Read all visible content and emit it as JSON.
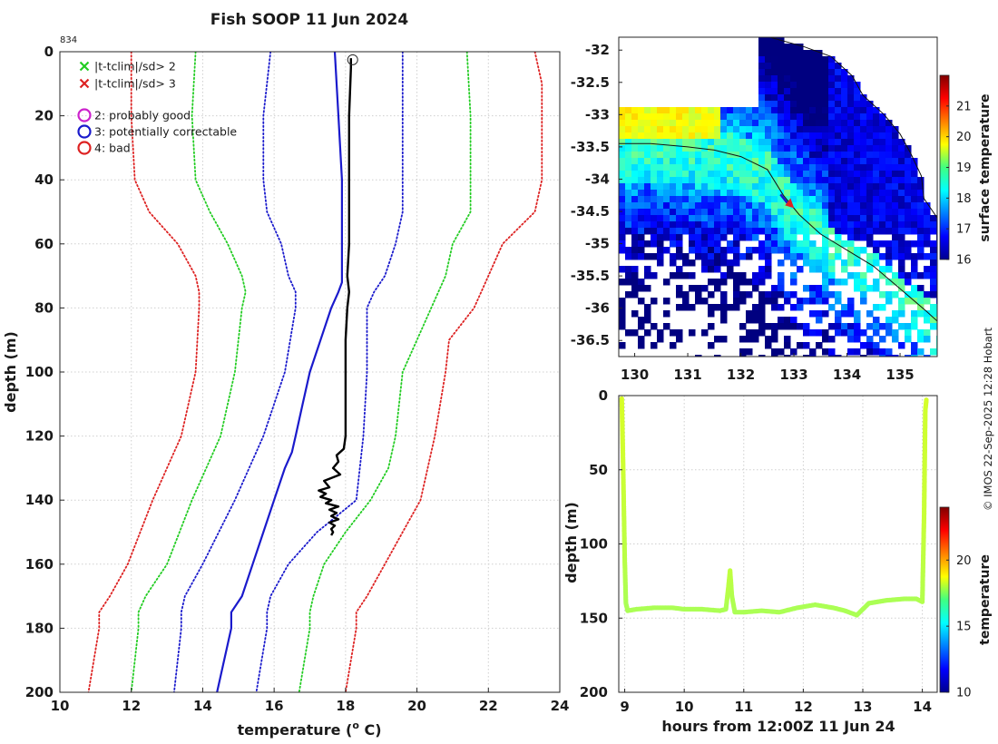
{
  "title": "Fish SOOP 11 Jun 2024",
  "profile_id": "834",
  "watermark": "© IMOS 22-Sep-2025 12:28 Hobart",
  "chart_data": [
    {
      "type": "line",
      "panel": "temperature-profile",
      "xlabel": "temperature (",
      "xlabel_sup": "o",
      "xlabel_tail": " C)",
      "ylabel": "depth (m)",
      "xlim": [
        10,
        24
      ],
      "ylim": [
        0,
        200
      ],
      "y_reversed": true,
      "xticks": [
        "10",
        "12",
        "14",
        "16",
        "18",
        "20",
        "22",
        "24"
      ],
      "yticks": [
        "0",
        "20",
        "40",
        "60",
        "80",
        "100",
        "120",
        "140",
        "160",
        "180",
        "200"
      ],
      "grid": true,
      "legend": [
        {
          "symbol": "x",
          "color": "#22cc22",
          "label": "|t-tclim|/sd> 2"
        },
        {
          "symbol": "x",
          "color": "#dd2222",
          "label": "|t-tclim|/sd> 3"
        },
        {
          "symbol": "o",
          "color": "#cc22cc",
          "label": "2: probably good"
        },
        {
          "symbol": "o",
          "color": "#1a1acc",
          "label": "3: potentially correctable"
        },
        {
          "symbol": "o",
          "color": "#dd2222",
          "label": "4: bad"
        }
      ],
      "series": [
        {
          "name": "clim-3sd-low",
          "color": "#dd2222",
          "style": "dotted",
          "depth": [
            0,
            20,
            40,
            50,
            60,
            70,
            75,
            80,
            100,
            120,
            140,
            160,
            170,
            175,
            180,
            200
          ],
          "temp": [
            12.0,
            12.0,
            12.1,
            12.5,
            13.3,
            13.8,
            13.9,
            13.9,
            13.8,
            13.4,
            12.6,
            11.9,
            11.4,
            11.1,
            11.1,
            10.8
          ]
        },
        {
          "name": "clim-2sd-low",
          "color": "#22cc22",
          "style": "dotted",
          "depth": [
            0,
            20,
            40,
            50,
            60,
            70,
            75,
            80,
            100,
            120,
            140,
            160,
            170,
            175,
            180,
            200
          ],
          "temp": [
            13.8,
            13.7,
            13.8,
            14.2,
            14.7,
            15.1,
            15.2,
            15.1,
            14.9,
            14.5,
            13.7,
            13.0,
            12.4,
            12.2,
            12.2,
            12.0
          ]
        },
        {
          "name": "clim-1sd-low",
          "color": "#1a1acc",
          "style": "dotted",
          "depth": [
            0,
            20,
            40,
            50,
            60,
            70,
            75,
            80,
            100,
            120,
            140,
            160,
            170,
            175,
            180,
            200
          ],
          "temp": [
            15.9,
            15.7,
            15.7,
            15.8,
            16.2,
            16.4,
            16.6,
            16.6,
            16.3,
            15.7,
            14.9,
            14.0,
            13.5,
            13.4,
            13.4,
            13.2
          ]
        },
        {
          "name": "clim-mean",
          "color": "#1a1acc",
          "style": "solid",
          "depth": [
            0,
            20,
            40,
            50,
            60,
            65,
            70,
            72,
            75,
            80,
            90,
            100,
            110,
            120,
            125,
            130,
            140,
            150,
            160,
            170,
            175,
            180,
            200
          ],
          "temp": [
            17.7,
            17.8,
            17.9,
            17.9,
            17.9,
            17.9,
            17.9,
            17.9,
            17.8,
            17.6,
            17.3,
            17.0,
            16.8,
            16.6,
            16.5,
            16.3,
            16.0,
            15.7,
            15.4,
            15.1,
            14.8,
            14.8,
            14.4
          ]
        },
        {
          "name": "clim-1sd-high",
          "color": "#1a1acc",
          "style": "dotted",
          "depth": [
            0,
            20,
            40,
            50,
            60,
            70,
            75,
            80,
            100,
            120,
            140,
            150,
            160,
            170,
            175,
            180,
            200
          ],
          "temp": [
            19.6,
            19.6,
            19.6,
            19.6,
            19.4,
            19.1,
            18.8,
            18.6,
            18.6,
            18.5,
            18.3,
            17.2,
            16.4,
            15.9,
            15.8,
            15.8,
            15.5
          ]
        },
        {
          "name": "clim-2sd-high",
          "color": "#22cc22",
          "style": "dotted",
          "depth": [
            0,
            20,
            40,
            50,
            60,
            70,
            80,
            90,
            100,
            120,
            130,
            140,
            150,
            160,
            170,
            175,
            180,
            200
          ],
          "temp": [
            21.4,
            21.5,
            21.5,
            21.5,
            21.0,
            20.8,
            20.4,
            20.0,
            19.6,
            19.4,
            19.2,
            18.7,
            18.0,
            17.4,
            17.1,
            17.0,
            17.0,
            16.7
          ]
        },
        {
          "name": "clim-3sd-high",
          "color": "#dd2222",
          "style": "dotted",
          "depth": [
            0,
            10,
            20,
            40,
            50,
            60,
            70,
            80,
            90,
            100,
            120,
            140,
            150,
            160,
            170,
            175,
            180,
            200
          ],
          "temp": [
            23.3,
            23.5,
            23.5,
            23.5,
            23.3,
            22.4,
            22.0,
            21.6,
            20.9,
            20.8,
            20.5,
            20.1,
            19.6,
            19.1,
            18.6,
            18.3,
            18.3,
            18.0
          ]
        },
        {
          "name": "observed",
          "color": "#000000",
          "style": "solid",
          "depth": [
            2,
            5,
            20,
            40,
            60,
            70,
            75,
            80,
            90,
            100,
            110,
            120,
            124,
            126,
            128,
            130,
            132,
            134,
            136,
            137,
            138,
            139,
            140,
            141,
            142,
            143,
            144,
            145,
            146,
            147,
            148,
            149,
            150,
            151
          ],
          "temp": [
            18.15,
            18.15,
            18.1,
            18.1,
            18.1,
            18.05,
            18.1,
            18.05,
            18.0,
            18.0,
            18.0,
            18.0,
            17.95,
            17.75,
            17.8,
            17.65,
            17.85,
            17.4,
            17.55,
            17.25,
            17.45,
            17.3,
            17.6,
            17.45,
            17.8,
            17.55,
            17.75,
            17.6,
            17.8,
            17.55,
            17.7,
            17.6,
            17.65,
            17.6
          ]
        }
      ],
      "flag_marker": {
        "depth": 2.5,
        "temp": 18.2,
        "symbol": "o"
      }
    },
    {
      "type": "heatmap",
      "panel": "surface-temperature-map",
      "xlim": [
        129.7,
        135.7
      ],
      "ylim": [
        -36.75,
        -31.8
      ],
      "xticks": [
        "130",
        "131",
        "132",
        "133",
        "134",
        "135"
      ],
      "yticks": [
        "-32",
        "-32.5",
        "-33",
        "-33.5",
        "-34",
        "-34.5",
        "-35",
        "-35.5",
        "-36",
        "-36.5"
      ],
      "colorbar_label": "surface temperature",
      "colorbar_range": [
        16,
        22
      ],
      "colorbar_ticks": [
        "16",
        "17",
        "18",
        "19",
        "20",
        "21"
      ],
      "coastline": [
        [
          132.55,
          -31.8
        ],
        [
          133.2,
          -31.95
        ],
        [
          133.7,
          -32.1
        ],
        [
          134.1,
          -32.4
        ],
        [
          134.3,
          -32.7
        ],
        [
          134.7,
          -33.0
        ],
        [
          135.0,
          -33.3
        ],
        [
          135.2,
          -33.6
        ],
        [
          135.4,
          -33.95
        ],
        [
          135.45,
          -34.3
        ],
        [
          135.7,
          -34.6
        ]
      ],
      "ship_track": [
        [
          129.7,
          -33.45
        ],
        [
          130.3,
          -33.45
        ],
        [
          131.0,
          -33.5
        ],
        [
          131.5,
          -33.55
        ],
        [
          132.0,
          -33.65
        ],
        [
          132.5,
          -33.85
        ],
        [
          132.8,
          -34.25
        ],
        [
          133.1,
          -34.55
        ],
        [
          133.5,
          -34.85
        ],
        [
          134.0,
          -35.1
        ],
        [
          134.5,
          -35.35
        ],
        [
          135.0,
          -35.7
        ],
        [
          135.5,
          -36.05
        ],
        [
          135.7,
          -36.2
        ]
      ],
      "ship_position": {
        "lon": 132.85,
        "lat": -34.35
      }
    },
    {
      "type": "scatter",
      "panel": "depth-time-series",
      "xlabel": "hours from 12:00Z 11 Jun 24",
      "ylabel": "depth (m)",
      "xlim": [
        8.9,
        14.25
      ],
      "ylim": [
        0,
        200
      ],
      "y_reversed": true,
      "xticks": [
        "9",
        "10",
        "11",
        "12",
        "13",
        "14"
      ],
      "yticks": [
        "0",
        "50",
        "100",
        "150",
        "200"
      ],
      "colorbar_label": "temperature",
      "colorbar_range": [
        10,
        24
      ],
      "colorbar_ticks": [
        "10",
        "15",
        "20"
      ],
      "x": [
        8.95,
        8.97,
        9.0,
        9.02,
        9.05,
        9.2,
        9.5,
        9.8,
        10.0,
        10.3,
        10.6,
        10.7,
        10.74,
        10.77,
        10.8,
        10.85,
        11.0,
        11.3,
        11.6,
        11.9,
        12.2,
        12.5,
        12.7,
        12.9,
        13.1,
        13.4,
        13.7,
        13.9,
        14.0,
        14.03,
        14.05,
        14.07
      ],
      "y": [
        2,
        40,
        110,
        140,
        145,
        144,
        143,
        143,
        144,
        144,
        145,
        144,
        130,
        118,
        135,
        146,
        146,
        145,
        146,
        143,
        141,
        143,
        145,
        148,
        140,
        138,
        137,
        137,
        139,
        80,
        10,
        2
      ],
      "color_temp": [
        18.2,
        18.1,
        17.8,
        17.6,
        17.6,
        17.6,
        17.6,
        17.6,
        17.6,
        17.6,
        17.6,
        17.6,
        17.8,
        17.9,
        17.7,
        17.6,
        17.6,
        17.6,
        17.6,
        17.6,
        17.6,
        17.6,
        17.6,
        17.6,
        17.6,
        17.6,
        17.6,
        17.6,
        17.7,
        18.0,
        18.1,
        18.2
      ]
    }
  ]
}
